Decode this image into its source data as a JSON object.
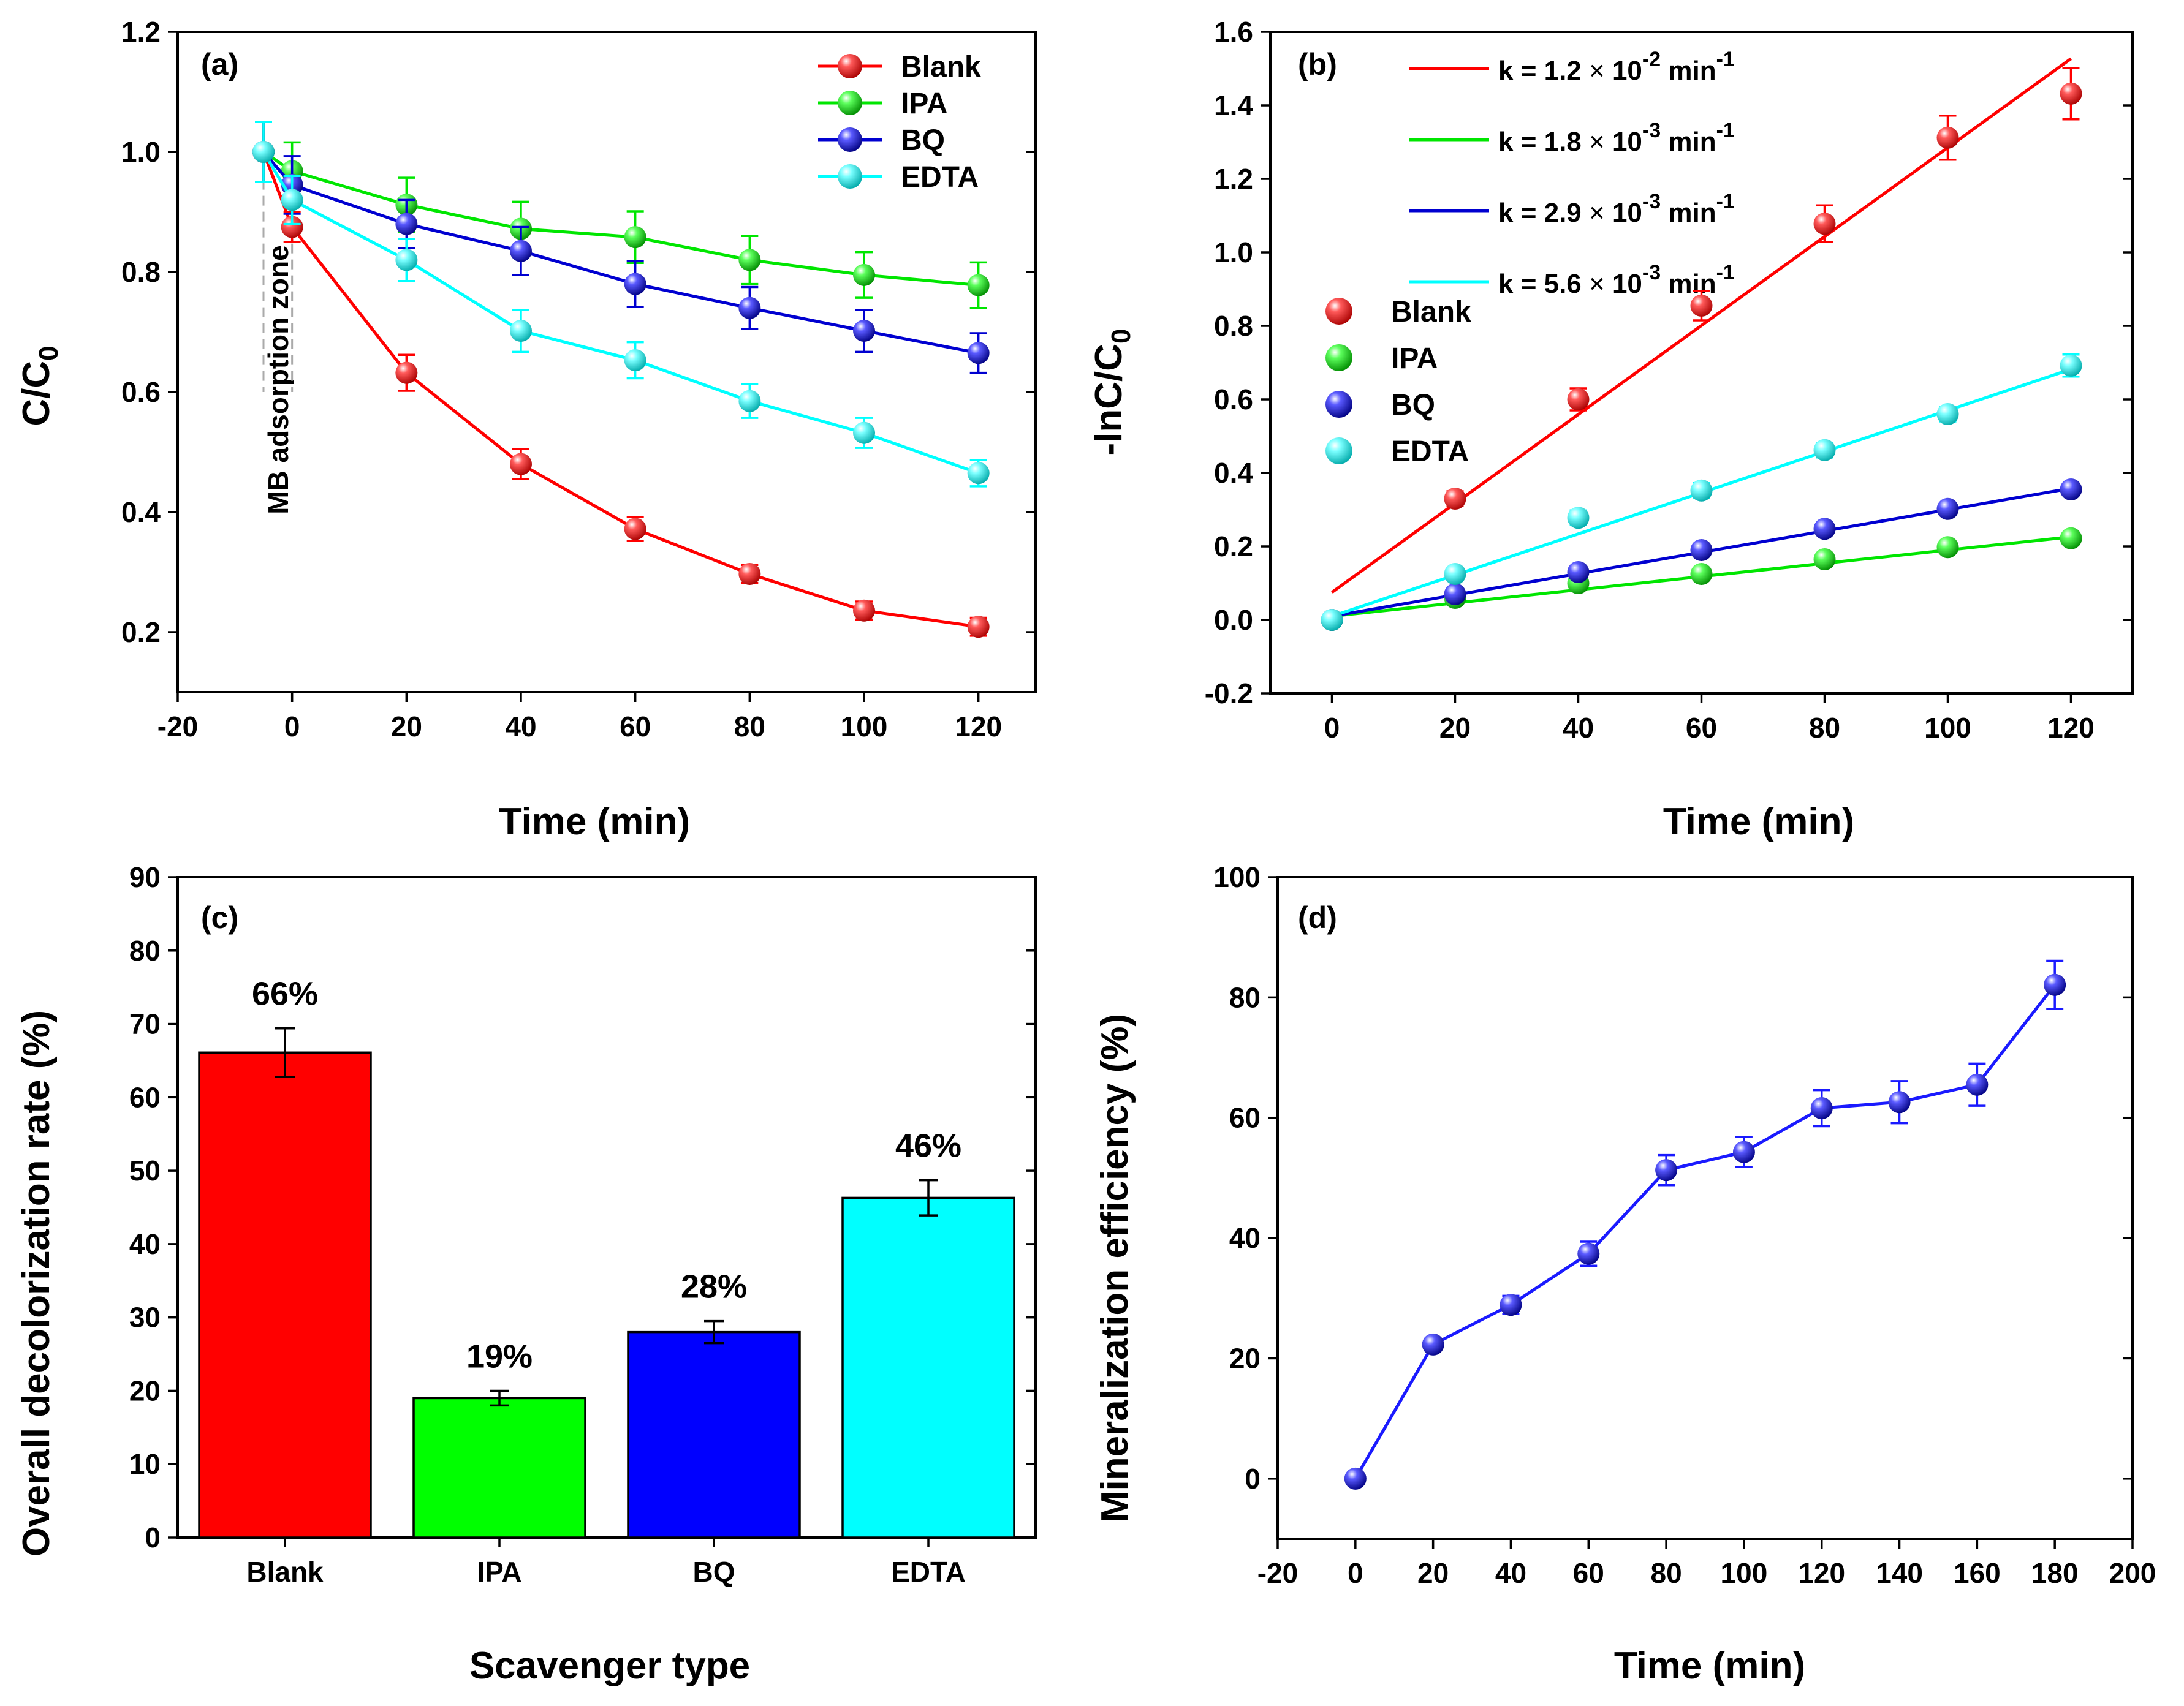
{
  "chart_data": [
    {
      "id": "a",
      "type": "line",
      "panel_label": "(a)",
      "xlabel": "Time (min)",
      "ylabel": "C/C0",
      "xlim": [
        -20,
        130
      ],
      "ylim": [
        0.1,
        1.2
      ],
      "xticks": [
        "-20",
        "0",
        "20",
        "40",
        "60",
        "80",
        "100",
        "120"
      ],
      "yticks": [
        "0.2",
        "0.4",
        "0.6",
        "0.8",
        "1.0",
        "1.2"
      ],
      "xtick_values": [
        -20,
        0,
        20,
        40,
        60,
        80,
        100,
        120
      ],
      "ytick_values": [
        0.2,
        0.4,
        0.6,
        0.8,
        1.0,
        1.2
      ],
      "annotation": "MB adsorption zone",
      "legend_position": "top-right",
      "series": [
        {
          "name": "Blank",
          "color": "#ff0000",
          "x": [
            -5,
            0,
            20,
            40,
            60,
            80,
            100,
            120
          ],
          "y": [
            1.0,
            0.875,
            0.632,
            0.48,
            0.372,
            0.297,
            0.236,
            0.209
          ],
          "err": [
            0.05,
            0.025,
            0.03,
            0.025,
            0.02,
            0.015,
            0.015,
            0.015
          ]
        },
        {
          "name": "IPA",
          "color": "#00e600",
          "x": [
            -5,
            0,
            20,
            40,
            60,
            80,
            100,
            120
          ],
          "y": [
            1.0,
            0.968,
            0.912,
            0.872,
            0.858,
            0.82,
            0.795,
            0.778
          ],
          "err": [
            0.05,
            0.048,
            0.045,
            0.045,
            0.043,
            0.04,
            0.038,
            0.038
          ]
        },
        {
          "name": "BQ",
          "color": "#0000d0",
          "x": [
            -5,
            0,
            20,
            40,
            60,
            80,
            100,
            120
          ],
          "y": [
            1.0,
            0.945,
            0.88,
            0.835,
            0.78,
            0.74,
            0.702,
            0.665
          ],
          "err": [
            0.05,
            0.048,
            0.04,
            0.04,
            0.038,
            0.035,
            0.035,
            0.033
          ]
        },
        {
          "name": "EDTA",
          "color": "#00ffff",
          "x": [
            -5,
            0,
            20,
            40,
            60,
            80,
            100,
            120
          ],
          "y": [
            1.0,
            0.92,
            0.82,
            0.702,
            0.653,
            0.585,
            0.532,
            0.465
          ],
          "err": [
            0.05,
            0.04,
            0.035,
            0.035,
            0.03,
            0.028,
            0.025,
            0.022
          ]
        }
      ]
    },
    {
      "id": "b",
      "type": "scatter",
      "panel_label": "(b)",
      "xlabel": "Time (min)",
      "ylabel": "-lnC/C0",
      "xlim": [
        -10,
        130
      ],
      "ylim": [
        -0.2,
        1.6
      ],
      "xticks": [
        "0",
        "20",
        "40",
        "60",
        "80",
        "100",
        "120"
      ],
      "yticks": [
        "-0.2",
        "0.0",
        "0.2",
        "0.4",
        "0.6",
        "0.8",
        "1.0",
        "1.2",
        "1.4",
        "1.6"
      ],
      "xtick_values": [
        0,
        20,
        40,
        60,
        80,
        100,
        120
      ],
      "ytick_values": [
        -0.2,
        0.0,
        0.2,
        0.4,
        0.6,
        0.8,
        1.0,
        1.2,
        1.4,
        1.6
      ],
      "fit_legend": [
        {
          "k_text": "k = 1.2",
          "exp": "-2",
          "unit": "min",
          "color": "#ff0000"
        },
        {
          "k_text": "k = 1.8",
          "exp": "-3",
          "unit": "min",
          "color": "#00e600"
        },
        {
          "k_text": "k = 2.9",
          "exp": "-3",
          "unit": "min",
          "color": "#0000d0"
        },
        {
          "k_text": "k = 5.6",
          "exp": "-3",
          "unit": "min",
          "color": "#00ffff"
        }
      ],
      "series": [
        {
          "name": "Blank",
          "color": "#ff0000",
          "x": [
            0,
            20,
            40,
            60,
            80,
            100,
            120
          ],
          "y": [
            0.0,
            0.33,
            0.6,
            0.855,
            1.078,
            1.312,
            1.432
          ],
          "err": [
            0.01,
            0.02,
            0.03,
            0.04,
            0.05,
            0.06,
            0.07
          ],
          "fit": [
            0.075,
            0.0121
          ]
        },
        {
          "name": "IPA",
          "color": "#00e600",
          "x": [
            0,
            20,
            40,
            60,
            80,
            100,
            120
          ],
          "y": [
            0.0,
            0.06,
            0.1,
            0.125,
            0.165,
            0.198,
            0.222
          ],
          "err": [
            0.01,
            0.01,
            0.01,
            0.01,
            0.01,
            0.01,
            0.01
          ],
          "fit": [
            0.01,
            0.0018
          ]
        },
        {
          "name": "BQ",
          "color": "#0000d0",
          "x": [
            0,
            20,
            40,
            60,
            80,
            100,
            120
          ],
          "y": [
            0.0,
            0.07,
            0.13,
            0.19,
            0.248,
            0.302,
            0.355
          ],
          "err": [
            0.01,
            0.01,
            0.01,
            0.01,
            0.01,
            0.01,
            0.01
          ],
          "fit": [
            0.01,
            0.0029
          ]
        },
        {
          "name": "EDTA",
          "color": "#00ffff",
          "x": [
            0,
            20,
            40,
            60,
            80,
            100,
            120
          ],
          "y": [
            0.0,
            0.125,
            0.278,
            0.352,
            0.462,
            0.56,
            0.692
          ],
          "err": [
            0.01,
            0.015,
            0.02,
            0.02,
            0.02,
            0.02,
            0.03
          ],
          "fit": [
            0.01,
            0.0056
          ]
        }
      ]
    },
    {
      "id": "c",
      "type": "bar",
      "panel_label": "(c)",
      "xlabel": "Scavenger type",
      "ylabel": "Overall decolorization rate (%)",
      "ylim": [
        0,
        90
      ],
      "yticks": [
        "0",
        "10",
        "20",
        "30",
        "40",
        "50",
        "60",
        "70",
        "80",
        "90"
      ],
      "ytick_values": [
        0,
        10,
        20,
        30,
        40,
        50,
        60,
        70,
        80,
        90
      ],
      "categories": [
        "Blank",
        "IPA",
        "BQ",
        "EDTA"
      ],
      "values": [
        66.1,
        19.0,
        28.0,
        46.3
      ],
      "errors": [
        3.3,
        1.0,
        1.5,
        2.4
      ],
      "labels": [
        "66%",
        "19%",
        "28%",
        "46%"
      ],
      "colors": [
        "#ff0000",
        "#00ff00",
        "#0000ff",
        "#00ffff"
      ]
    },
    {
      "id": "d",
      "type": "line",
      "panel_label": "(d)",
      "xlabel": "Time (min)",
      "ylabel": "Mineralization efficiency (%)",
      "xlim": [
        -20,
        200
      ],
      "ylim": [
        -10,
        100
      ],
      "xticks": [
        "-20",
        "0",
        "20",
        "40",
        "60",
        "80",
        "100",
        "120",
        "140",
        "160",
        "180",
        "200"
      ],
      "yticks": [
        "0",
        "20",
        "40",
        "60",
        "80",
        "100"
      ],
      "xtick_values": [
        -20,
        0,
        20,
        40,
        60,
        80,
        100,
        120,
        140,
        160,
        180,
        200
      ],
      "ytick_values": [
        0,
        20,
        40,
        60,
        80,
        100
      ],
      "series": [
        {
          "name": "Mineralization",
          "color": "#1a1aff",
          "x": [
            0,
            20,
            40,
            60,
            80,
            100,
            120,
            140,
            160,
            180
          ],
          "y": [
            0.0,
            22.3,
            28.9,
            37.4,
            51.3,
            54.3,
            61.6,
            62.6,
            65.5,
            82.1
          ],
          "err": [
            0.5,
            1.0,
            1.5,
            2.0,
            2.5,
            2.5,
            3.0,
            3.5,
            3.5,
            4.0
          ]
        }
      ]
    }
  ]
}
